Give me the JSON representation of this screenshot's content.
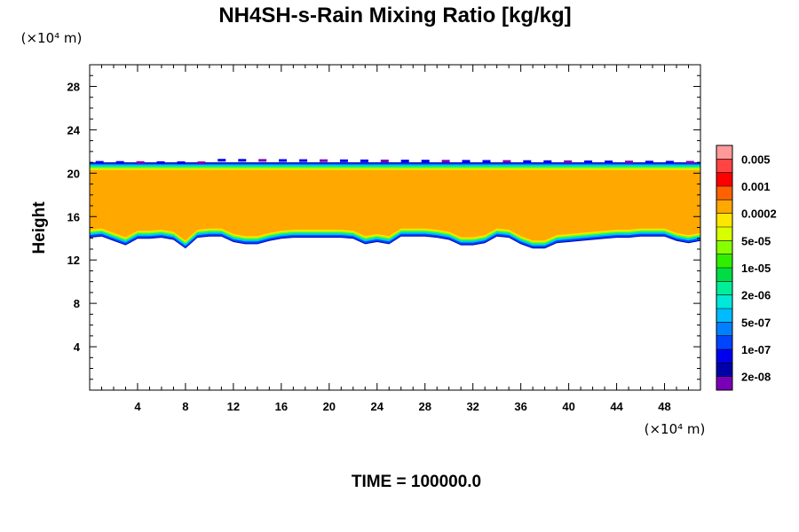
{
  "chart_data": {
    "type": "heatmap",
    "title": "NH4SH-s-Rain Mixing Ratio [kg/kg]",
    "ylabel": "Height",
    "x_unit_label": "(×10⁴ m)",
    "y_unit_label": "(×10⁴ m)",
    "time_label": "TIME = 100000.0",
    "xlim": [
      0,
      51
    ],
    "ylim": [
      0,
      30
    ],
    "x_ticks": [
      4,
      8,
      12,
      16,
      20,
      24,
      28,
      32,
      36,
      40,
      44,
      48
    ],
    "y_ticks": [
      4,
      8,
      12,
      16,
      20,
      24,
      28
    ],
    "x_tick_labels": [
      "4",
      "8",
      "12",
      "16",
      "20",
      "24",
      "28",
      "32",
      "36",
      "40",
      "44",
      "48"
    ],
    "y_tick_labels": [
      "4",
      "8",
      "12",
      "16",
      "20",
      "24",
      "28"
    ],
    "colorbar": {
      "labels": [
        "0.005",
        "0.001",
        "0.0002",
        "5e-05",
        "1e-05",
        "2e-06",
        "5e-07",
        "1e-07",
        "2e-08"
      ],
      "colors_top_to_bottom": [
        "#ff9a9a",
        "#ff4444",
        "#ff0000",
        "#ff6000",
        "#ffa800",
        "#ffe600",
        "#d8ff00",
        "#88ff00",
        "#30ee00",
        "#00dd44",
        "#00ee99",
        "#00e8d8",
        "#00bbff",
        "#0080ff",
        "#0044ff",
        "#0000ee",
        "#0000a8",
        "#7a00b8"
      ]
    },
    "field": {
      "fill_color": "#ffa800",
      "layer_top_height": 20.3,
      "layer_top_edge_height": 21.0,
      "layer_bottom_profile_x": [
        0,
        1,
        2,
        3,
        4,
        5,
        6,
        7,
        8,
        9,
        10,
        11,
        12,
        13,
        14,
        15,
        16,
        17,
        18,
        19,
        20,
        21,
        22,
        23,
        24,
        25,
        26,
        27,
        28,
        29,
        30,
        31,
        32,
        33,
        34,
        35,
        36,
        37,
        38,
        39,
        40,
        41,
        42,
        43,
        44,
        45,
        46,
        47,
        48,
        49,
        50,
        51
      ],
      "layer_bottom_profile_y": [
        14.3,
        14.4,
        14.0,
        13.6,
        14.2,
        14.2,
        14.3,
        14.1,
        13.3,
        14.3,
        14.4,
        14.4,
        13.9,
        13.7,
        13.7,
        14.0,
        14.2,
        14.3,
        14.3,
        14.3,
        14.3,
        14.3,
        14.2,
        13.7,
        13.9,
        13.7,
        14.4,
        14.4,
        14.4,
        14.3,
        14.1,
        13.6,
        13.6,
        13.8,
        14.4,
        14.3,
        13.7,
        13.3,
        13.3,
        13.8,
        13.9,
        14.0,
        14.1,
        14.2,
        14.3,
        14.3,
        14.4,
        14.4,
        14.4,
        14.0,
        13.8,
        14.0
      ]
    }
  }
}
